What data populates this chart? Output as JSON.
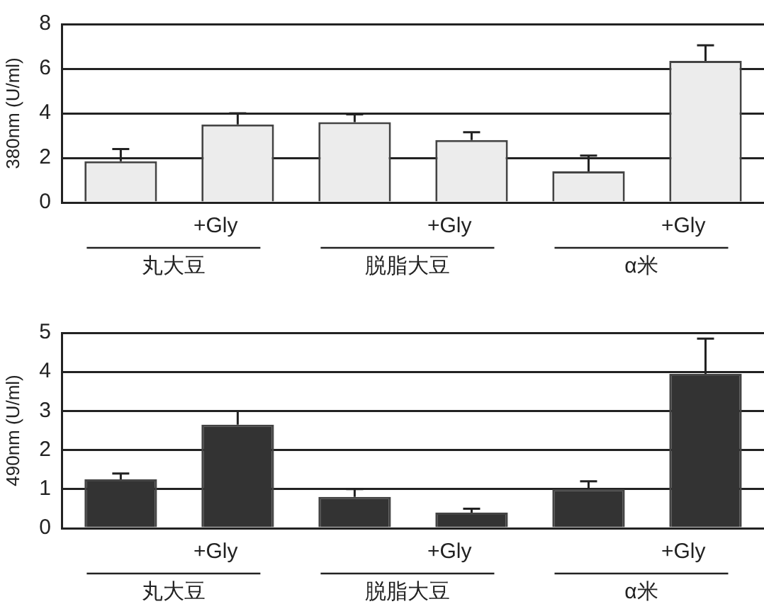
{
  "chart_data": [
    {
      "type": "bar",
      "ylabel": "380nm (U/ml)",
      "categories": [
        null,
        "+Gly",
        null,
        "+Gly",
        null,
        "+Gly"
      ],
      "annotations": [
        "丸大豆",
        "脱脂大豆",
        "α米"
      ],
      "ylim": [
        0,
        8
      ],
      "yticks": [
        0,
        2,
        4,
        6,
        8
      ],
      "grid": "y",
      "legend": false,
      "series": [
        {
          "color": "#ececec",
          "values": [
            1.85,
            3.5,
            3.6,
            2.8,
            1.4,
            6.35
          ],
          "errors": [
            [
              1.85,
              2.4
            ],
            [
              3.5,
              4.0
            ],
            [
              3.6,
              3.95
            ],
            [
              2.8,
              3.15
            ],
            [
              1.4,
              2.1
            ],
            [
              6.35,
              7.05
            ]
          ]
        }
      ]
    },
    {
      "type": "bar",
      "ylabel": "490nm (U/ml)",
      "categories": [
        null,
        "+Gly",
        null,
        "+Gly",
        null,
        "+Gly"
      ],
      "annotations": [
        "丸大豆",
        "脱脂大豆",
        "α米"
      ],
      "ylim": [
        0,
        5
      ],
      "yticks": [
        0,
        1,
        2,
        3,
        4,
        5
      ],
      "grid": "y",
      "legend": false,
      "series": [
        {
          "color": "#333333",
          "values": [
            1.25,
            2.65,
            0.8,
            0.4,
            1.0,
            3.95
          ],
          "errors": [
            [
              1.25,
              1.4
            ],
            [
              2.65,
              3.0
            ],
            [
              0.8,
              1.0
            ],
            [
              0.4,
              0.5
            ],
            [
              1.0,
              1.2
            ],
            [
              3.95,
              4.85
            ]
          ]
        }
      ]
    }
  ]
}
